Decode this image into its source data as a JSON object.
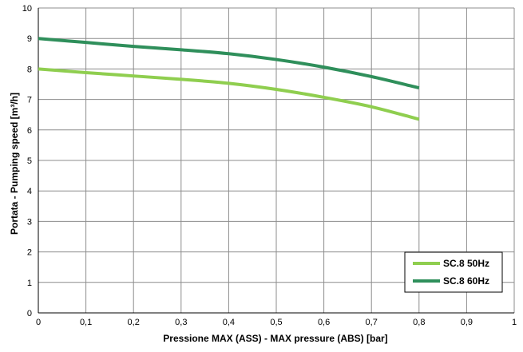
{
  "chart_data": {
    "type": "line",
    "xlabel": "Pressione MAX  (ASS) - MAX pressure (ABS) [bar]",
    "ylabel": "Portata - Pumping speed [m³/h]",
    "xlim": [
      0,
      1
    ],
    "ylim": [
      0,
      10
    ],
    "x_ticks": [
      0,
      0.1,
      0.2,
      0.3,
      0.4,
      0.5,
      0.6,
      0.7,
      0.8,
      0.9,
      1
    ],
    "x_tick_labels": [
      "0",
      "0,1",
      "0,2",
      "0,3",
      "0,4",
      "0,5",
      "0,6",
      "0,7",
      "0,8",
      "0,9",
      "1"
    ],
    "y_ticks": [
      0,
      1,
      2,
      3,
      4,
      5,
      6,
      7,
      8,
      9,
      10
    ],
    "y_tick_labels": [
      "0",
      "1",
      "2",
      "3",
      "4",
      "5",
      "6",
      "7",
      "8",
      "9",
      "10"
    ],
    "grid": true,
    "legend_position": "bottom-right",
    "series": [
      {
        "name": "SC.8 50Hz",
        "color": "#8fce4f",
        "x": [
          0,
          0.1,
          0.2,
          0.3,
          0.4,
          0.5,
          0.6,
          0.7,
          0.8
        ],
        "y": [
          8.0,
          7.88,
          7.77,
          7.66,
          7.53,
          7.33,
          7.07,
          6.76,
          6.35
        ]
      },
      {
        "name": "SC.8 60Hz",
        "color": "#2f8f5b",
        "x": [
          0,
          0.1,
          0.2,
          0.3,
          0.4,
          0.5,
          0.6,
          0.7,
          0.8
        ],
        "y": [
          9.0,
          8.87,
          8.74,
          8.63,
          8.5,
          8.31,
          8.06,
          7.75,
          7.38
        ]
      }
    ]
  }
}
